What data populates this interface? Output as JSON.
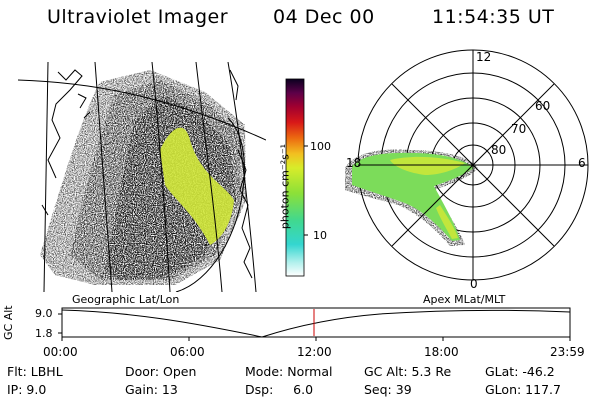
{
  "header": {
    "title": "Ultraviolet Imager",
    "date": "04 Dec 00",
    "time": "11:54:35 UT"
  },
  "colorbar": {
    "unit_label": "photon cm⁻²s⁻¹",
    "tick_100": "100",
    "tick_10": "10"
  },
  "left_panel": {
    "caption": "Geographic Lat/Lon"
  },
  "right_panel": {
    "caption": "Apex MLat/MLT",
    "mlt_12": "12",
    "mlt_18": "18",
    "mlt_6": "6",
    "mlt_0": "0",
    "lat_60": "60",
    "lat_70": "70",
    "lat_80": "80"
  },
  "altitude_plot": {
    "ylabel": "GC Alt",
    "ytick_top": "9.0",
    "ytick_bottom": "1.8",
    "x_ticks": [
      "00:00",
      "06:00",
      "12:00",
      "18:00",
      "23:59"
    ],
    "current_marker_color": "#cc0000"
  },
  "status": {
    "filter": "Flt: LBHL",
    "ip": "IP:  9.0",
    "door": "Door: Open",
    "gain": "Gain: 13",
    "mode": "Mode: Normal",
    "dsp": "Dsp:     6.0",
    "gc_alt": "GC Alt: 5.3 Re",
    "seq": "Seq: 39",
    "glat": "GLat: -46.2",
    "glon": "GLon: 117.7"
  }
}
